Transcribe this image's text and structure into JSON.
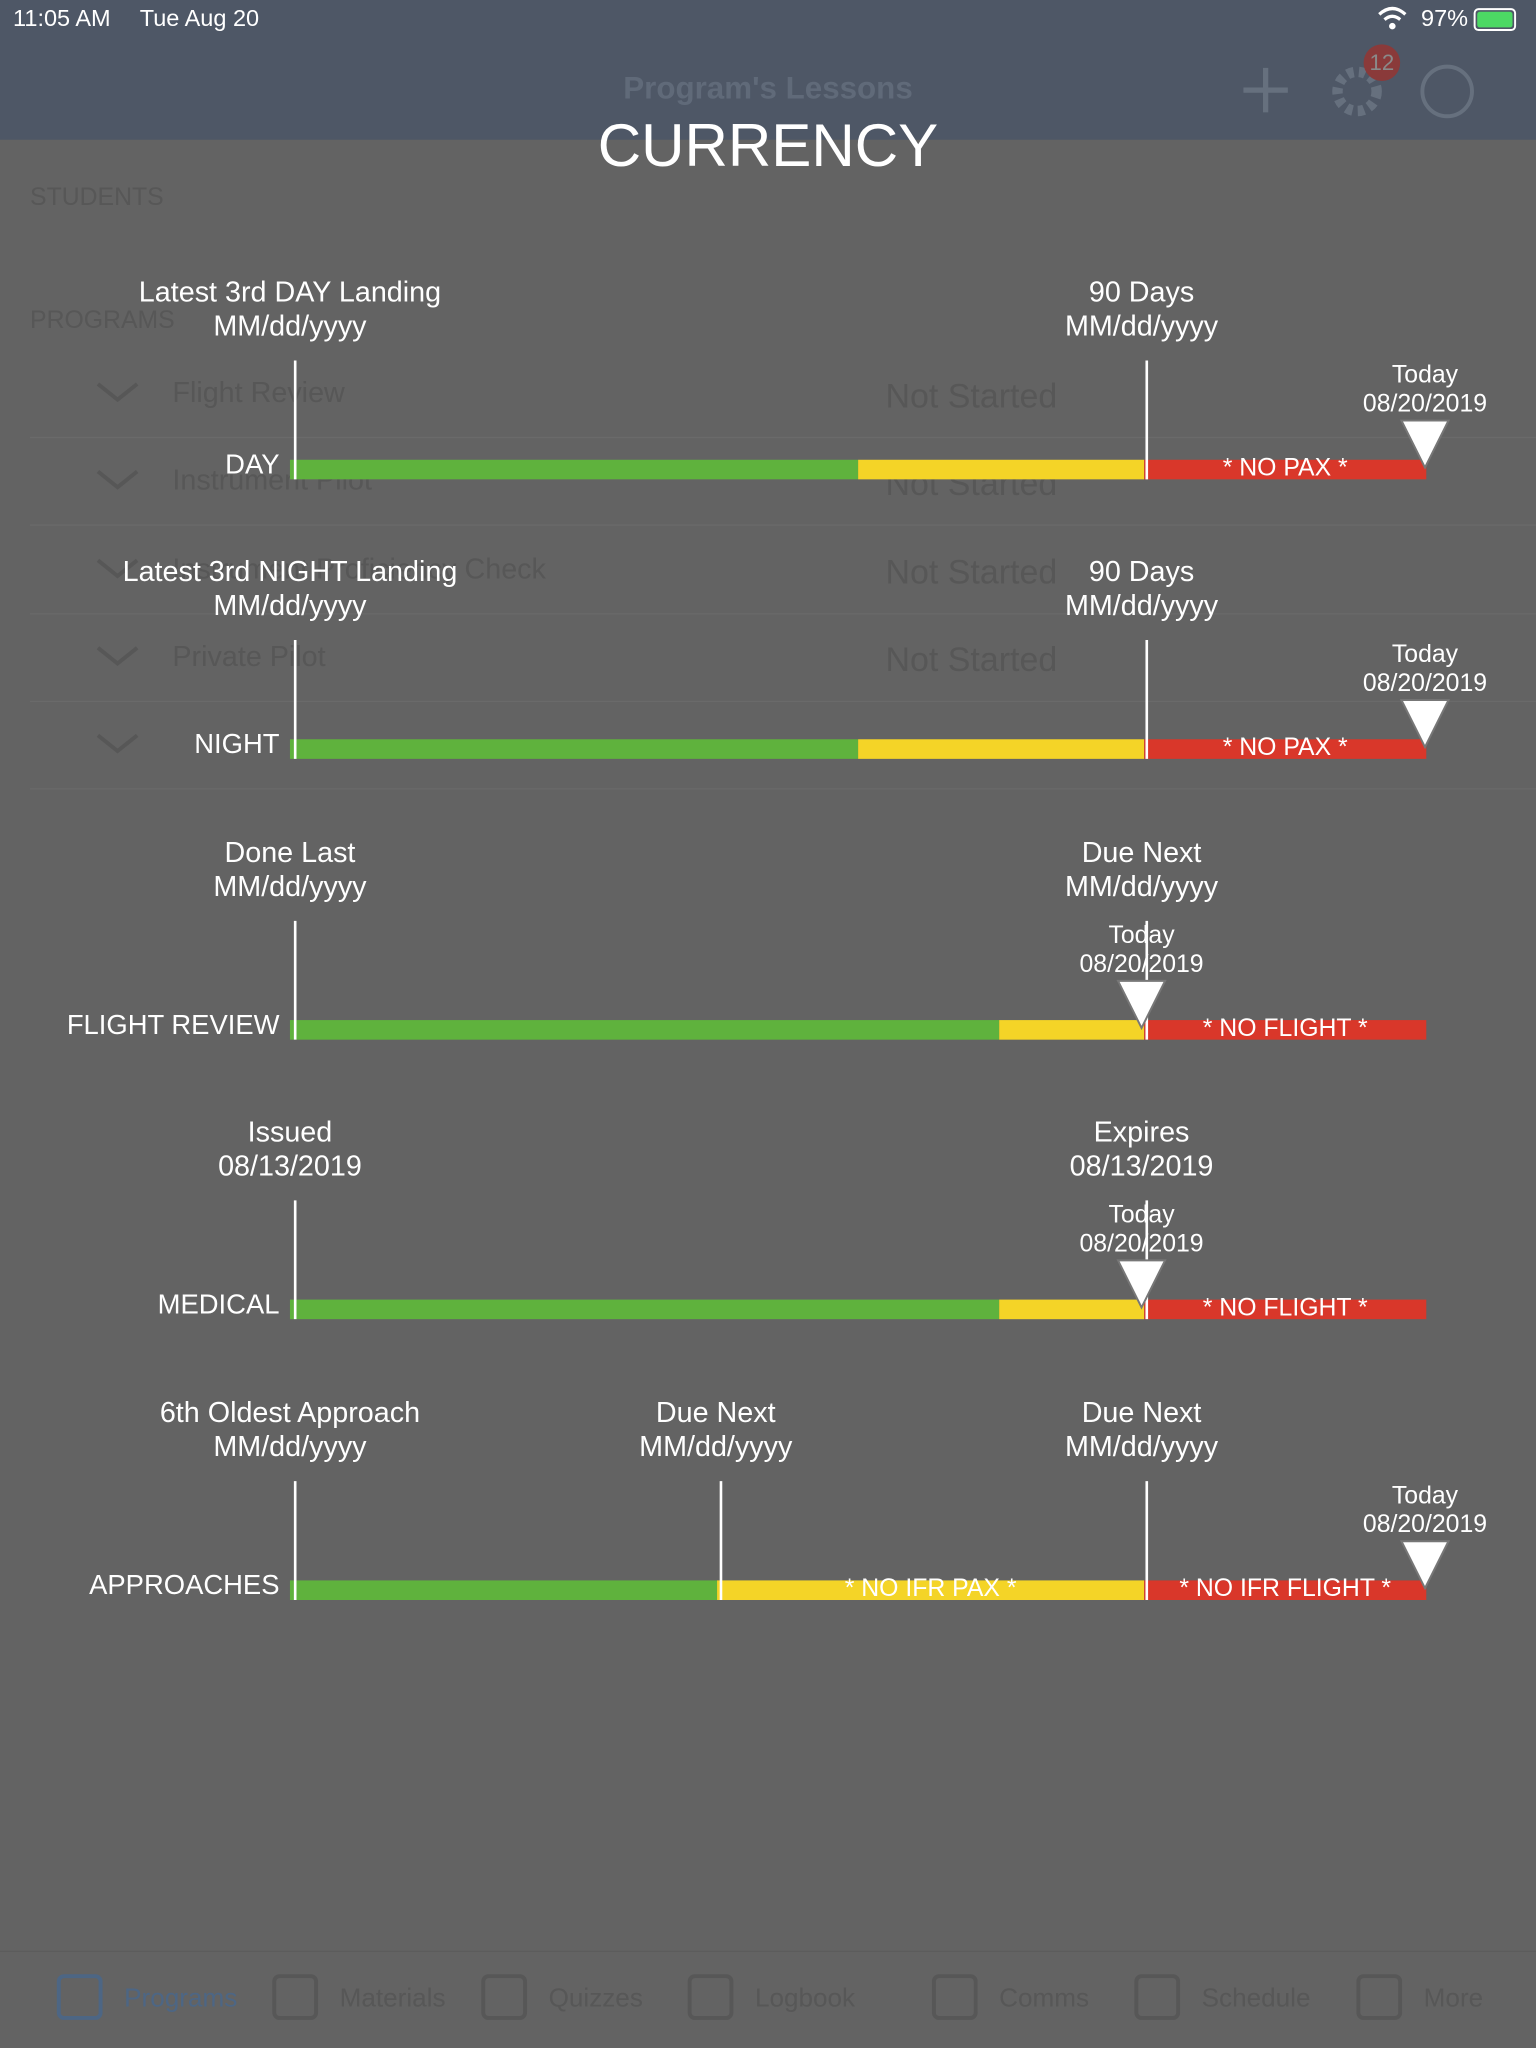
{
  "status_bar": {
    "time": "11:05 AM",
    "date": "Tue Aug 20",
    "battery": "97%"
  },
  "nav": {
    "title": "Program's Lessons",
    "badge": "12"
  },
  "background": {
    "sections": [
      "STUDENTS",
      "PROGRAMS"
    ],
    "programs": [
      {
        "name": "Flight Review",
        "status": "Not Started"
      },
      {
        "name": "Instrument Pilot",
        "status": "Not Started"
      },
      {
        "name": "Instrument Proficiency Check",
        "status": "Not Started"
      },
      {
        "name": "Private Pilot",
        "status": "Not Started"
      }
    ]
  },
  "tabs": [
    "Programs",
    "Materials",
    "Quizzes",
    "Logbook",
    "Comms",
    "Schedule",
    "More"
  ],
  "currency": {
    "title": "CURRENCY",
    "rows": [
      {
        "label": "DAY",
        "markers": [
          {
            "title": "Latest 3rd DAY Landing",
            "date": "MM/dd/yyyy"
          },
          {
            "title": "90 Days",
            "date": "MM/dd/yyyy"
          }
        ],
        "today": {
          "title": "Today",
          "date": "08/20/2019"
        },
        "warnings": [
          "* NO PAX *"
        ]
      },
      {
        "label": "NIGHT",
        "markers": [
          {
            "title": "Latest 3rd NIGHT Landing",
            "date": "MM/dd/yyyy"
          },
          {
            "title": "90 Days",
            "date": "MM/dd/yyyy"
          }
        ],
        "today": {
          "title": "Today",
          "date": "08/20/2019"
        },
        "warnings": [
          "* NO PAX *"
        ]
      },
      {
        "label": "FLIGHT REVIEW",
        "markers": [
          {
            "title": "Done Last",
            "date": "MM/dd/yyyy"
          },
          {
            "title": "Due Next",
            "date": "MM/dd/yyyy"
          }
        ],
        "today": {
          "title": "Today",
          "date": "08/20/2019"
        },
        "warnings": [
          "* NO FLIGHT *"
        ]
      },
      {
        "label": "MEDICAL",
        "markers": [
          {
            "title": "Issued",
            "date": "08/13/2019"
          },
          {
            "title": "Expires",
            "date": "08/13/2019"
          }
        ],
        "today": {
          "title": "Today",
          "date": "08/20/2019"
        },
        "warnings": [
          "* NO FLIGHT *"
        ]
      },
      {
        "label": "APPROACHES",
        "markers": [
          {
            "title": "6th Oldest Approach",
            "date": "MM/dd/yyyy"
          },
          {
            "title": "Due Next",
            "date": "MM/dd/yyyy"
          },
          {
            "title": "Due Next",
            "date": "MM/dd/yyyy"
          }
        ],
        "today": {
          "title": "Today",
          "date": "08/20/2019"
        },
        "warnings": [
          "* NO IFR PAX *",
          "* NO IFR FLIGHT *"
        ]
      }
    ]
  }
}
